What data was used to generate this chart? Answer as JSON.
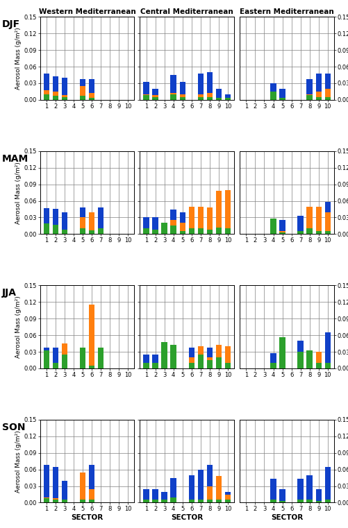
{
  "seasons": [
    "DJF",
    "MAM",
    "JJA",
    "SON"
  ],
  "regions": [
    "Western Mediterranean",
    "Central Mediterranean",
    "Eastern Mediterranean"
  ],
  "colors": {
    "maritime": "#1040c8",
    "continental": "#2ca02c",
    "desert": "#ff7f0e"
  },
  "data": {
    "DJF": {
      "Western Mediterranean": {
        "sectors": [
          1,
          2,
          3,
          5,
          6
        ],
        "maritime": [
          0.048,
          0.043,
          0.04,
          0.038,
          0.038
        ],
        "continental": [
          0.01,
          0.007,
          0.005,
          0.007,
          0.004
        ],
        "desert": [
          0.017,
          0.015,
          0.008,
          0.025,
          0.012
        ]
      },
      "Central Mediterranean": {
        "sectors": [
          1,
          2,
          4,
          5,
          7,
          8,
          9,
          10
        ],
        "maritime": [
          0.033,
          0.02,
          0.045,
          0.033,
          0.048,
          0.05,
          0.02,
          0.01
        ],
        "continental": [
          0.008,
          0.005,
          0.01,
          0.005,
          0.005,
          0.005,
          0.003,
          0.003
        ],
        "desert": [
          0.01,
          0.008,
          0.012,
          0.01,
          0.01,
          0.012,
          0.003,
          0.003
        ]
      },
      "Eastern Mediterranean": {
        "sectors": [
          4,
          5,
          8,
          9,
          10
        ],
        "maritime": [
          0.03,
          0.02,
          0.038,
          0.047,
          0.048
        ],
        "continental": [
          0.015,
          0.003,
          0.008,
          0.005,
          0.005
        ],
        "desert": [
          0.003,
          0.004,
          0.01,
          0.015,
          0.02
        ]
      }
    },
    "MAM": {
      "Western Mediterranean": {
        "sectors": [
          1,
          2,
          3,
          5,
          6,
          7
        ],
        "maritime": [
          0.047,
          0.046,
          0.04,
          0.048,
          0.02,
          0.048
        ],
        "continental": [
          0.019,
          0.017,
          0.008,
          0.01,
          0.007,
          0.01
        ],
        "desert": [
          0.01,
          0.007,
          0.008,
          0.03,
          0.04,
          0.005
        ]
      },
      "Central Mediterranean": {
        "sectors": [
          1,
          2,
          3,
          4,
          5,
          6,
          7,
          8,
          9,
          10
        ],
        "maritime": [
          0.03,
          0.03,
          0.02,
          0.045,
          0.04,
          0.048,
          0.048,
          0.048,
          0.048,
          0.048
        ],
        "continental": [
          0.01,
          0.008,
          0.02,
          0.015,
          0.005,
          0.01,
          0.01,
          0.008,
          0.012,
          0.01
        ],
        "desert": [
          0.005,
          0.005,
          0.005,
          0.025,
          0.02,
          0.05,
          0.05,
          0.048,
          0.078,
          0.08
        ]
      },
      "Eastern Mediterranean": {
        "sectors": [
          4,
          5,
          7,
          8,
          9,
          10
        ],
        "maritime": [
          0.025,
          0.025,
          0.033,
          0.04,
          0.04,
          0.058
        ],
        "continental": [
          0.028,
          0.003,
          0.005,
          0.01,
          0.005,
          0.005
        ],
        "desert": [
          0.008,
          0.005,
          0.003,
          0.05,
          0.05,
          0.04
        ]
      }
    },
    "JJA": {
      "Western Mediterranean": {
        "sectors": [
          1,
          2,
          3,
          5,
          6,
          7
        ],
        "maritime": [
          0.038,
          0.038,
          0.025,
          0.038,
          0.01,
          0.038
        ],
        "continental": [
          0.033,
          0.01,
          0.025,
          0.038,
          0.005,
          0.038
        ],
        "desert": [
          0.003,
          0.005,
          0.045,
          0.01,
          0.115,
          0.01
        ]
      },
      "Central Mediterranean": {
        "sectors": [
          1,
          2,
          3,
          4,
          6,
          7,
          8,
          9,
          10
        ],
        "maritime": [
          0.025,
          0.025,
          0.028,
          0.035,
          0.038,
          0.033,
          0.038,
          0.02,
          0.01
        ],
        "continental": [
          0.01,
          0.01,
          0.047,
          0.043,
          0.01,
          0.025,
          0.015,
          0.02,
          0.01
        ],
        "desert": [
          0.003,
          0.003,
          0.003,
          0.003,
          0.02,
          0.04,
          0.02,
          0.043,
          0.04
        ]
      },
      "Eastern Mediterranean": {
        "sectors": [
          4,
          5,
          7,
          8,
          9,
          10
        ],
        "maritime": [
          0.028,
          0.01,
          0.05,
          0.02,
          0.02,
          0.065
        ],
        "continental": [
          0.01,
          0.057,
          0.03,
          0.033,
          0.01,
          0.01
        ],
        "desert": [
          0.003,
          0.003,
          0.003,
          0.01,
          0.03,
          0.01
        ]
      }
    },
    "SON": {
      "Western Mediterranean": {
        "sectors": [
          1,
          2,
          3,
          5,
          6
        ],
        "maritime": [
          0.068,
          0.065,
          0.04,
          0.043,
          0.068
        ],
        "continental": [
          0.008,
          0.005,
          0.005,
          0.005,
          0.005
        ],
        "desert": [
          0.01,
          0.008,
          0.005,
          0.055,
          0.025
        ]
      },
      "Central Mediterranean": {
        "sectors": [
          1,
          2,
          3,
          4,
          6,
          7,
          8,
          9,
          10
        ],
        "maritime": [
          0.025,
          0.025,
          0.02,
          0.045,
          0.05,
          0.06,
          0.068,
          0.048,
          0.02
        ],
        "continental": [
          0.005,
          0.005,
          0.005,
          0.01,
          0.005,
          0.005,
          0.005,
          0.005,
          0.005
        ],
        "desert": [
          0.003,
          0.003,
          0.003,
          0.003,
          0.003,
          0.003,
          0.03,
          0.048,
          0.015
        ]
      },
      "Eastern Mediterranean": {
        "sectors": [
          4,
          5,
          7,
          8,
          9,
          10
        ],
        "maritime": [
          0.043,
          0.025,
          0.043,
          0.05,
          0.025,
          0.065
        ],
        "continental": [
          0.005,
          0.003,
          0.005,
          0.005,
          0.003,
          0.005
        ],
        "desert": [
          0.005,
          0.003,
          0.003,
          0.003,
          0.003,
          0.003
        ]
      }
    }
  },
  "ylim": [
    0.0,
    0.15
  ],
  "yticks": [
    0.0,
    0.03,
    0.06,
    0.09,
    0.12,
    0.15
  ],
  "xlabel": "SECTOR",
  "ylabel": "Aerosol Mass (g/m²)",
  "bar_width": 0.65
}
